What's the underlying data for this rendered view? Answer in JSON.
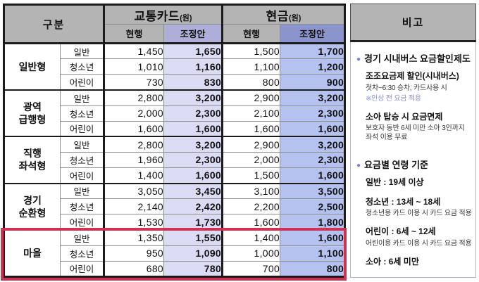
{
  "colors": {
    "header_gray": "#b4b4b4",
    "card_adjusted_header": "#aeaed8",
    "card_adjusted_cell": "#dbdbf4",
    "cash_adjusted_header": "#8b94cc",
    "cash_adjusted_cell": "#b5c1ee",
    "highlight_border": "#cc3355",
    "bullet": "#7c81d6",
    "note_text": "#8a8fd2"
  },
  "table": {
    "corner_label": "구분",
    "column_groups": [
      {
        "label": "교통카드",
        "unit": "(원)",
        "subcolumns": [
          "현행",
          "조정안"
        ]
      },
      {
        "label": "현금",
        "unit": "(원)",
        "subcolumns": [
          "현행",
          "조정안"
        ]
      }
    ],
    "row_groups": [
      {
        "label_lines": [
          "일반형"
        ],
        "highlighted": false,
        "rows": [
          {
            "age": "일반",
            "card_current": "1,450",
            "card_adjusted": "1,650",
            "cash_current": "1,500",
            "cash_adjusted": "1,700"
          },
          {
            "age": "청소년",
            "card_current": "1,010",
            "card_adjusted": "1,160",
            "cash_current": "1,100",
            "cash_adjusted": "1,200"
          },
          {
            "age": "어린이",
            "card_current": "730",
            "card_adjusted": "830",
            "cash_current": "800",
            "cash_adjusted": "900"
          }
        ]
      },
      {
        "label_lines": [
          "광역",
          "급행형"
        ],
        "highlighted": false,
        "rows": [
          {
            "age": "일반",
            "card_current": "2,800",
            "card_adjusted": "3,200",
            "cash_current": "2,900",
            "cash_adjusted": "3,200"
          },
          {
            "age": "청소년",
            "card_current": "2,000",
            "card_adjusted": "2,300",
            "cash_current": "2,100",
            "cash_adjusted": "2,300"
          },
          {
            "age": "어린이",
            "card_current": "1,600",
            "card_adjusted": "1,600",
            "cash_current": "1,600",
            "cash_adjusted": "1,600"
          }
        ]
      },
      {
        "label_lines": [
          "직행",
          "좌석형"
        ],
        "highlighted": false,
        "rows": [
          {
            "age": "일반",
            "card_current": "2,800",
            "card_adjusted": "3,200",
            "cash_current": "2,900",
            "cash_adjusted": "3,200"
          },
          {
            "age": "청소년",
            "card_current": "1,960",
            "card_adjusted": "2,300",
            "cash_current": "2,000",
            "cash_adjusted": "2,300"
          },
          {
            "age": "어린이",
            "card_current": "1,400",
            "card_adjusted": "1,600",
            "cash_current": "1,500",
            "cash_adjusted": "1,600"
          }
        ]
      },
      {
        "label_lines": [
          "경기",
          "순환형"
        ],
        "highlighted": false,
        "rows": [
          {
            "age": "일반",
            "card_current": "3,050",
            "card_adjusted": "3,450",
            "cash_current": "3,100",
            "cash_adjusted": "3,500"
          },
          {
            "age": "청소년",
            "card_current": "2,140",
            "card_adjusted": "2,420",
            "cash_current": "2,200",
            "cash_adjusted": "2,500"
          },
          {
            "age": "어린이",
            "card_current": "1,530",
            "card_adjusted": "1,730",
            "cash_current": "1,600",
            "cash_adjusted": "1,800"
          }
        ]
      },
      {
        "label_lines": [
          "마을"
        ],
        "highlighted": true,
        "rows": [
          {
            "age": "일반",
            "card_current": "1,350",
            "card_adjusted": "1,550",
            "cash_current": "1,400",
            "cash_adjusted": "1,600"
          },
          {
            "age": "청소년",
            "card_current": "950",
            "card_adjusted": "1,090",
            "cash_current": "1,000",
            "cash_adjusted": "1,100"
          },
          {
            "age": "어린이",
            "card_current": "680",
            "card_adjusted": "780",
            "cash_current": "700",
            "cash_adjusted": "800"
          }
        ]
      }
    ]
  },
  "remarks": {
    "title": "비고",
    "sections": [
      {
        "title": "경기 시내버스 요금할인제도",
        "items": [
          {
            "style": "bold",
            "text": "조조요금제 할인(시내버스)"
          },
          {
            "style": "normal",
            "text": "첫차~6:30 승차, 카드사용 시"
          },
          {
            "style": "note",
            "text": "※인상 전 요금 적용"
          },
          {
            "style": "bold gap",
            "text": "소아 탑승 시 요금면제"
          },
          {
            "style": "normal",
            "text": "보호자 동반 6세 미만 소아 3인까지 좌석 이용 무료"
          }
        ]
      },
      {
        "title": "요금별 연령 기준",
        "items": [
          {
            "style": "bold",
            "text": "일반 : 19세 이상"
          },
          {
            "style": "bold gap",
            "text": "청소년 : 13세 ~ 18세"
          },
          {
            "style": "normal",
            "text": "청소년용 카드 이용 시 카드 요금 적용"
          },
          {
            "style": "bold gap",
            "text": "어린이 : 6세 ~ 12세"
          },
          {
            "style": "normal",
            "text": "어린이용 카드 이용 시 카드 요금 적용"
          },
          {
            "style": "bold gap",
            "text": "소아 : 6세 미만"
          }
        ]
      }
    ]
  }
}
